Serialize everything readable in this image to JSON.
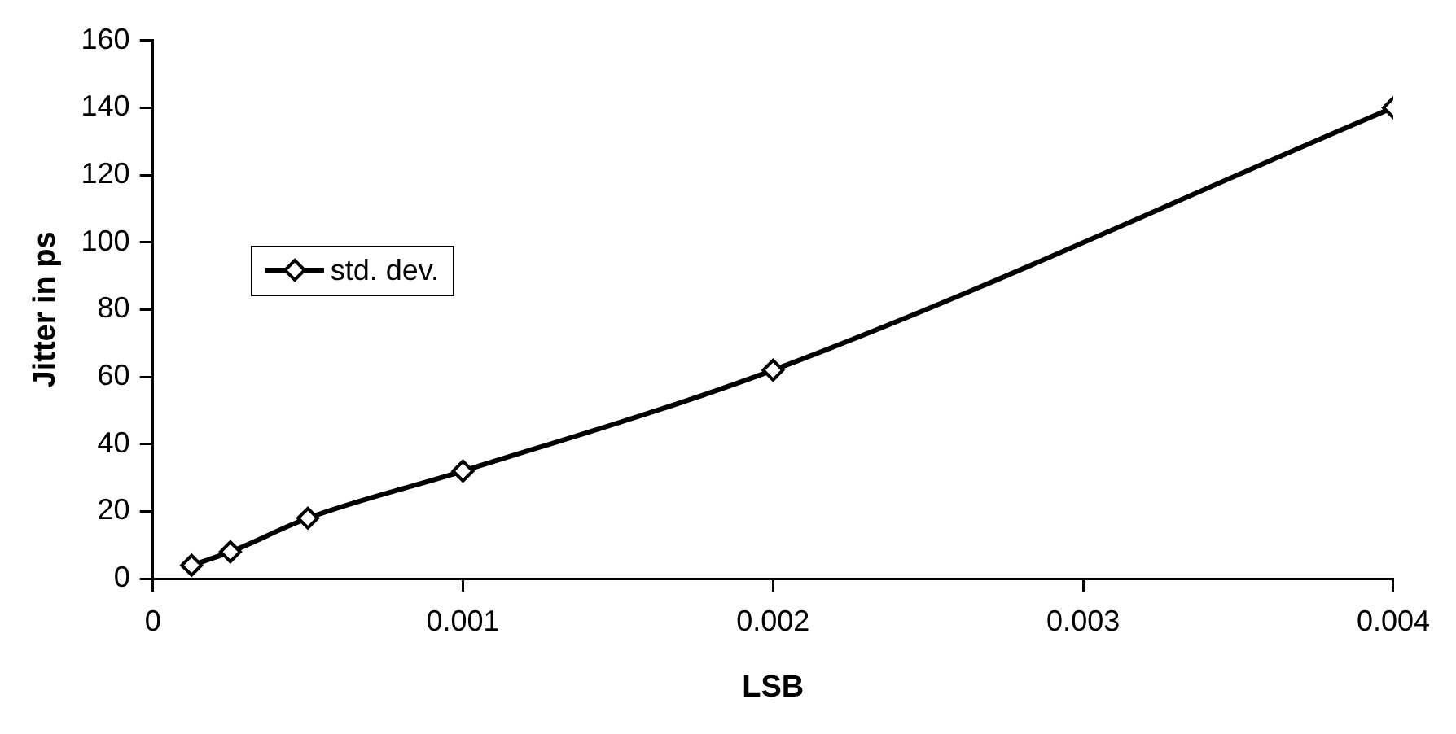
{
  "chart_data": {
    "type": "line",
    "xlabel": "LSB",
    "ylabel": "Jitter in ps",
    "x": [
      0.000125,
      0.00025,
      0.0005,
      0.001,
      0.002,
      0.004
    ],
    "series": [
      {
        "name": "std. dev.",
        "color": "#000000",
        "values": [
          4,
          8,
          18,
          32,
          62,
          140
        ]
      }
    ],
    "xlim": [
      0,
      0.004
    ],
    "xticks": [
      0,
      0.001,
      0.002,
      0.003,
      0.004
    ],
    "ylim": [
      0,
      160
    ],
    "yticks": [
      0,
      20,
      40,
      60,
      80,
      100,
      120,
      140,
      160
    ],
    "grid": false,
    "legend": "left",
    "marker": "diamond",
    "line_style": "solid"
  }
}
